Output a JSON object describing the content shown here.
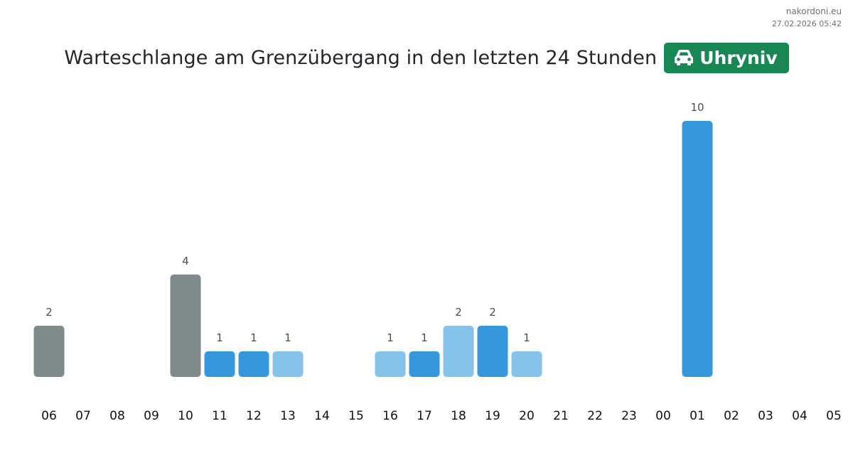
{
  "watermark": {
    "site": "nakordoni.eu",
    "timestamp": "27.02.2026 05:42"
  },
  "header": {
    "title": "Warteschlange am Grenzübergang in den letzten 24 Stunden",
    "badge_label": "Uhryniv",
    "badge_icon": "car-icon",
    "badge_color": "#198754"
  },
  "colors": {
    "gray": "#7f8b8b",
    "blue": "#3598dc",
    "light_blue": "#85c1e9",
    "label_text": "#4a4f55",
    "tick_text": "#111111"
  },
  "chart_data": {
    "type": "bar",
    "title": "Warteschlange am Grenzübergang in den letzten 24 Stunden",
    "xlabel": "",
    "ylabel": "",
    "ylim": [
      0,
      10
    ],
    "grid": false,
    "categories": [
      "06",
      "07",
      "08",
      "09",
      "10",
      "11",
      "12",
      "13",
      "14",
      "15",
      "16",
      "17",
      "18",
      "19",
      "20",
      "21",
      "22",
      "23",
      "00",
      "01",
      "02",
      "03",
      "04",
      "05"
    ],
    "values": [
      2,
      0,
      0,
      0,
      4,
      1,
      1,
      1,
      0,
      0,
      1,
      1,
      2,
      2,
      1,
      0,
      0,
      0,
      0,
      10,
      0,
      0,
      0,
      0
    ],
    "bar_colors": [
      "gray",
      "",
      "",
      "",
      "gray",
      "blue",
      "blue",
      "light_blue",
      "",
      "",
      "light_blue",
      "blue",
      "light_blue",
      "blue",
      "light_blue",
      "",
      "",
      "",
      "",
      "blue",
      "",
      "",
      "",
      ""
    ]
  }
}
